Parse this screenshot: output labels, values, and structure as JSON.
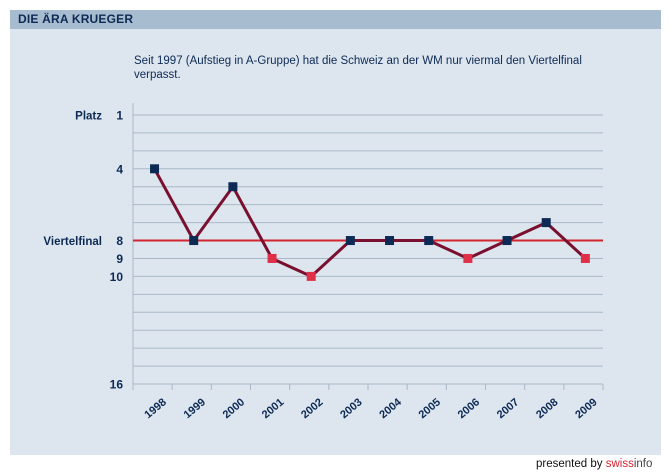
{
  "header": {
    "title": "DIE ÄRA KRUEGER",
    "subtitle": "Seit 1997 (Aufstieg in A-Gruppe) hat die Schweiz an der WM nur viermal den Viertelfinal verpasst."
  },
  "footer": {
    "prefix": "presented by",
    "brand_part1": "swiss",
    "brand_part2": "info"
  },
  "colors": {
    "panel": "#dde6ee",
    "title_bar": "#a8bcd0",
    "text": "#0d2a55",
    "line": "#7a1030",
    "grid": "#a9b8c8",
    "reference_line": "#d2252f",
    "marker_quarterfinal": "#0d2a55",
    "marker_missed": "#e03048"
  },
  "chart_data": {
    "type": "line",
    "title": "DIE ÄRA KRUEGER",
    "subtitle": "Seit 1997 (Aufstieg in A-Gruppe) hat die Schweiz an der WM nur viermal den Viertelfinal verpasst.",
    "ylabel": "Platz",
    "reference_label": "Viertelfinal",
    "reference_value": 8,
    "ylim": [
      1,
      16
    ],
    "y_inverted": true,
    "yticks": [
      1,
      4,
      8,
      9,
      10,
      16
    ],
    "grid": true,
    "categories": [
      "1998",
      "1999",
      "2000",
      "2001",
      "2002",
      "2003",
      "2004",
      "2005",
      "2006",
      "2007",
      "2008",
      "2009"
    ],
    "values": [
      4,
      8,
      5,
      9,
      10,
      8,
      8,
      8,
      9,
      8,
      7,
      9
    ],
    "marker_status": [
      "quarterfinal",
      "quarterfinal",
      "quarterfinal",
      "missed",
      "missed",
      "quarterfinal",
      "quarterfinal",
      "quarterfinal",
      "missed",
      "quarterfinal",
      "quarterfinal",
      "missed"
    ]
  }
}
